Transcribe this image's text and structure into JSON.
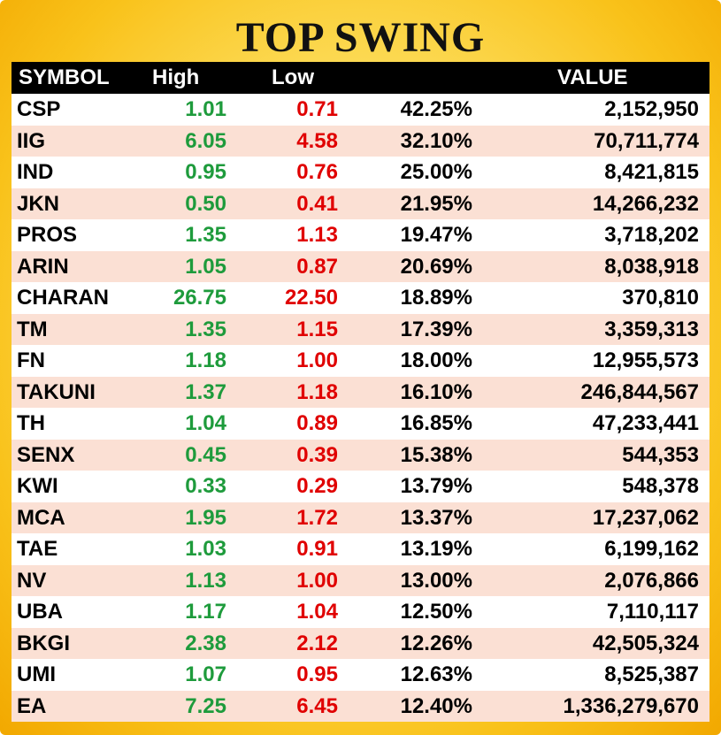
{
  "title": "TOP SWING",
  "columns": {
    "symbol": "SYMBOL",
    "high": "High",
    "low": "Low",
    "change": "",
    "value": "VALUE"
  },
  "rows": [
    {
      "symbol": "CSP",
      "high": "1.01",
      "low": "0.71",
      "change": "42.25%",
      "value": "2,152,950"
    },
    {
      "symbol": "IIG",
      "high": "6.05",
      "low": "4.58",
      "change": "32.10%",
      "value": "70,711,774"
    },
    {
      "symbol": "IND",
      "high": "0.95",
      "low": "0.76",
      "change": "25.00%",
      "value": "8,421,815"
    },
    {
      "symbol": "JKN",
      "high": "0.50",
      "low": "0.41",
      "change": "21.95%",
      "value": "14,266,232"
    },
    {
      "symbol": "PROS",
      "high": "1.35",
      "low": "1.13",
      "change": "19.47%",
      "value": "3,718,202"
    },
    {
      "symbol": "ARIN",
      "high": "1.05",
      "low": "0.87",
      "change": "20.69%",
      "value": "8,038,918"
    },
    {
      "symbol": "CHARAN",
      "high": "26.75",
      "low": "22.50",
      "change": "18.89%",
      "value": "370,810"
    },
    {
      "symbol": "TM",
      "high": "1.35",
      "low": "1.15",
      "change": "17.39%",
      "value": "3,359,313"
    },
    {
      "symbol": "FN",
      "high": "1.18",
      "low": "1.00",
      "change": "18.00%",
      "value": "12,955,573"
    },
    {
      "symbol": "TAKUNI",
      "high": "1.37",
      "low": "1.18",
      "change": "16.10%",
      "value": "246,844,567"
    },
    {
      "symbol": "TH",
      "high": "1.04",
      "low": "0.89",
      "change": "16.85%",
      "value": "47,233,441"
    },
    {
      "symbol": "SENX",
      "high": "0.45",
      "low": "0.39",
      "change": "15.38%",
      "value": "544,353"
    },
    {
      "symbol": "KWI",
      "high": "0.33",
      "low": "0.29",
      "change": "13.79%",
      "value": "548,378"
    },
    {
      "symbol": "MCA",
      "high": "1.95",
      "low": "1.72",
      "change": "13.37%",
      "value": "17,237,062"
    },
    {
      "symbol": "TAE",
      "high": "1.03",
      "low": "0.91",
      "change": "13.19%",
      "value": "6,199,162"
    },
    {
      "symbol": "NV",
      "high": "1.13",
      "low": "1.00",
      "change": "13.00%",
      "value": "2,076,866"
    },
    {
      "symbol": "UBA",
      "high": "1.17",
      "low": "1.04",
      "change": "12.50%",
      "value": "7,110,117"
    },
    {
      "symbol": "BKGI",
      "high": "2.38",
      "low": "2.12",
      "change": "12.26%",
      "value": "42,505,324"
    },
    {
      "symbol": "UMI",
      "high": "1.07",
      "low": "0.95",
      "change": "12.63%",
      "value": "8,525,387"
    },
    {
      "symbol": "EA",
      "high": "7.25",
      "low": "6.45",
      "change": "12.40%",
      "value": "1,336,279,670"
    }
  ],
  "colors": {
    "high": "#1e9b3c",
    "low": "#e00000",
    "header_bg": "#000000",
    "row_alt": "#fbe0d4",
    "frame": "#f9c21a"
  }
}
